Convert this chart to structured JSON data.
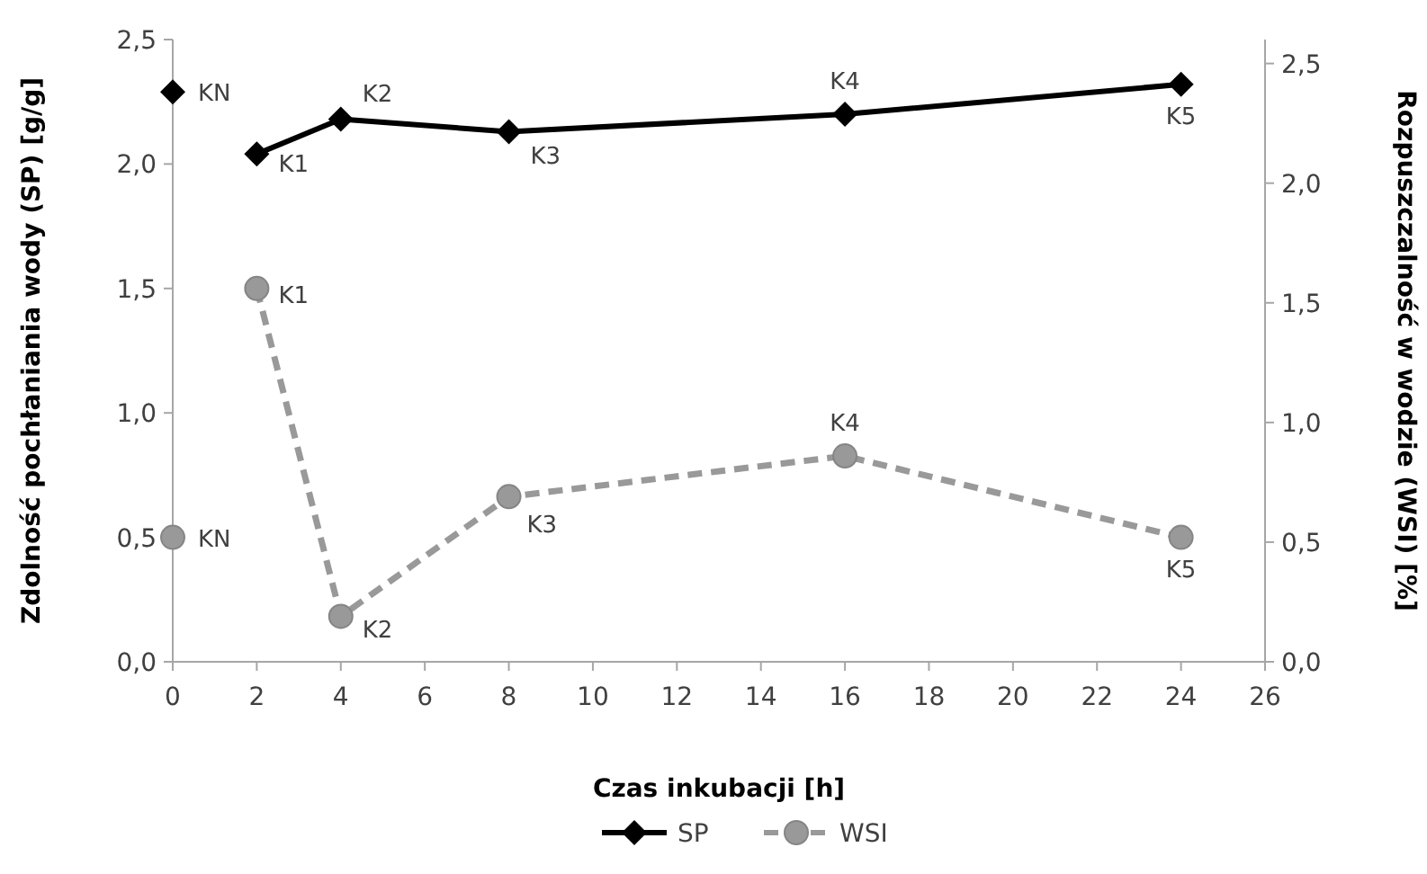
{
  "chart_data": {
    "type": "line",
    "xlabel": "Czas inkubacji [h]",
    "ylabel": "Zdolność pochłaniania wody (SP) [g/g]",
    "y2label": "Rozpuszczalność w wodzie (WSI) [%]",
    "xlim": [
      0,
      26
    ],
    "xticks": [
      0,
      2,
      4,
      6,
      8,
      10,
      12,
      14,
      16,
      18,
      20,
      22,
      24,
      26
    ],
    "ylim": [
      0,
      2.5
    ],
    "yticks": [
      {
        "value": 0,
        "label": "0,0"
      },
      {
        "value": 0.5,
        "label": "0,5"
      },
      {
        "value": 1,
        "label": "1,0"
      },
      {
        "value": 1.5,
        "label": "1,5"
      },
      {
        "value": 2,
        "label": "2,0"
      },
      {
        "value": 2.5,
        "label": "2,5"
      }
    ],
    "y2lim": [
      0,
      2.6
    ],
    "y2ticks": [
      {
        "value": 0,
        "label": "0,0"
      },
      {
        "value": 0.5,
        "label": "0,5"
      },
      {
        "value": 1,
        "label": "1,0"
      },
      {
        "value": 1.5,
        "label": "1,5"
      },
      {
        "value": 2,
        "label": "2,0"
      },
      {
        "value": 2.5,
        "label": "2,5"
      }
    ],
    "grid": false,
    "legend": "bottom",
    "series": [
      {
        "name": "SP",
        "color": "#000000",
        "marker": "diamond",
        "line_style": "solid",
        "x": [
          2,
          4,
          8,
          16,
          24
        ],
        "values": [
          2.04,
          2.18,
          2.13,
          2.2,
          2.32
        ],
        "value_labels": [
          "K1",
          "K2",
          "K3",
          "K4",
          "K5"
        ]
      },
      {
        "type": "scatter",
        "color": "#000000",
        "marker": "diamond",
        "x": [
          0
        ],
        "values": [
          2.29
        ],
        "value_labels": [
          "KN"
        ]
      },
      {
        "name": "WSI",
        "color": "#999999",
        "marker": "circle",
        "line_style": "dashed",
        "axis": "y2",
        "x": [
          2,
          4,
          8,
          16,
          24
        ],
        "values": [
          1.56,
          0.19,
          0.69,
          0.86,
          0.52
        ],
        "value_labels": [
          "K1",
          "K2",
          "K3",
          "K4",
          "K5"
        ]
      },
      {
        "type": "scatter",
        "color": "#999999",
        "marker": "circle",
        "axis": "y2",
        "x": [
          0
        ],
        "values": [
          0.52
        ],
        "value_labels": [
          "KN"
        ]
      }
    ]
  }
}
